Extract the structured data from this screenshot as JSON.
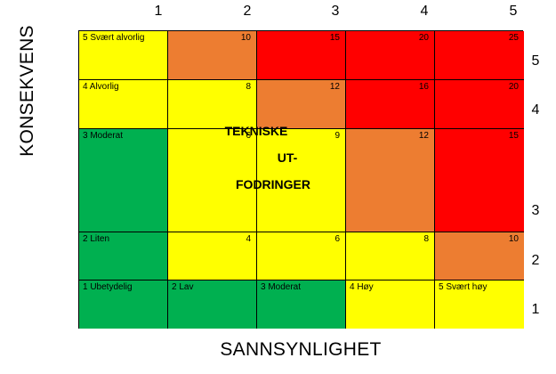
{
  "x_axis_title": "SANNSYNLIGHET",
  "y_axis_title": "KONSEKVENS",
  "top_numbers": [
    "1",
    "2",
    "3",
    "4",
    "5"
  ],
  "right_numbers": [
    "5",
    "4",
    "3",
    "2",
    "1"
  ],
  "consequence_labels": [
    "5 Svært alvorlig",
    "4 Alvorlig",
    "3 Moderat",
    "2 Liten",
    "1 Ubetydelig"
  ],
  "probability_labels": [
    "2 Lav",
    "3 Moderat",
    "4 Høy",
    "5 Svært høy"
  ],
  "note_lines": [
    "TEKNISKE",
    "UT-",
    "FODRINGER"
  ],
  "colors": {
    "green": "#00b050",
    "yellow": "#ffff00",
    "orange": "#ed7d31",
    "red": "#ff0000"
  },
  "matrix": [
    [
      {
        "v": "",
        "c": "yellow"
      },
      {
        "v": "10",
        "c": "orange"
      },
      {
        "v": "15",
        "c": "red"
      },
      {
        "v": "20",
        "c": "red"
      },
      {
        "v": "25",
        "c": "red"
      }
    ],
    [
      {
        "v": "",
        "c": "yellow"
      },
      {
        "v": "8",
        "c": "yellow"
      },
      {
        "v": "12",
        "c": "orange"
      },
      {
        "v": "16",
        "c": "red"
      },
      {
        "v": "20",
        "c": "red"
      }
    ],
    [
      {
        "v": "",
        "c": "green"
      },
      {
        "v": "6",
        "c": "yellow"
      },
      {
        "v": "9",
        "c": "yellow"
      },
      {
        "v": "12",
        "c": "orange"
      },
      {
        "v": "15",
        "c": "red"
      }
    ],
    [
      {
        "v": "",
        "c": "green"
      },
      {
        "v": "4",
        "c": "yellow"
      },
      {
        "v": "6",
        "c": "yellow"
      },
      {
        "v": "8",
        "c": "yellow"
      },
      {
        "v": "10",
        "c": "orange"
      }
    ],
    [
      {
        "v": "",
        "c": "green"
      },
      {
        "v": "",
        "c": "green"
      },
      {
        "v": "",
        "c": "green"
      },
      {
        "v": "",
        "c": "yellow"
      },
      {
        "v": "",
        "c": "yellow"
      }
    ]
  ]
}
